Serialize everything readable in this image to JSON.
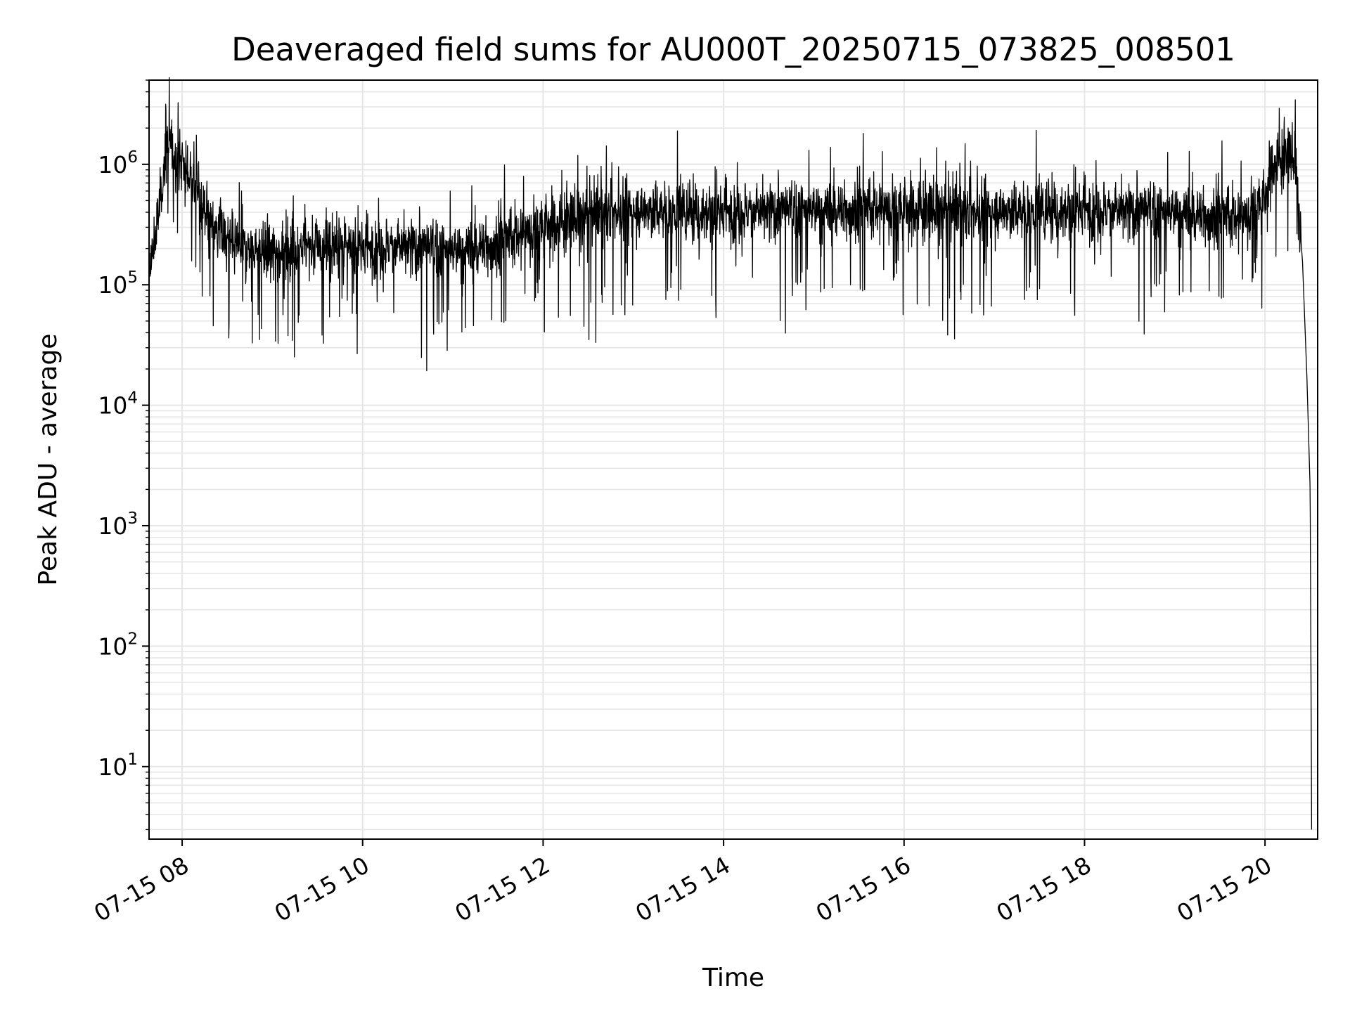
{
  "chart_data": {
    "type": "line",
    "title": "Deaveraged field sums for AU000T_20250715_073825_008501",
    "xlabel": "Time",
    "ylabel": "Peak ADU - average",
    "yscale": "log",
    "ylim": [
      2.5,
      5000000
    ],
    "xlim": [
      "07-15 07:38",
      "07-15 20:35"
    ],
    "grid": true,
    "line_color": "#000000",
    "x_ticks": [
      {
        "value": "07-15 08",
        "label": "07-15 08"
      },
      {
        "value": "07-15 10",
        "label": "07-15 10"
      },
      {
        "value": "07-15 12",
        "label": "07-15 12"
      },
      {
        "value": "07-15 14",
        "label": "07-15 14"
      },
      {
        "value": "07-15 16",
        "label": "07-15 16"
      },
      {
        "value": "07-15 18",
        "label": "07-15 18"
      },
      {
        "value": "07-15 20",
        "label": "07-15 20"
      }
    ],
    "y_ticks": [
      {
        "value": 10,
        "base": "10",
        "exp": "1"
      },
      {
        "value": 100,
        "base": "10",
        "exp": "2"
      },
      {
        "value": 1000,
        "base": "10",
        "exp": "3"
      },
      {
        "value": 10000,
        "base": "10",
        "exp": "4"
      },
      {
        "value": 100000,
        "base": "10",
        "exp": "5"
      },
      {
        "value": 1000000,
        "base": "10",
        "exp": "6"
      }
    ],
    "series": [
      {
        "x": [
          "07-15 07:38",
          "07-15 07:45",
          "07-15 07:50",
          "07-15 08:00",
          "07-15 08:10",
          "07-15 08:20",
          "07-15 08:30",
          "07-15 08:45",
          "07-15 09:00",
          "07-15 09:30",
          "07-15 10:00",
          "07-15 10:30",
          "07-15 11:00",
          "07-15 11:30",
          "07-15 12:00",
          "07-15 12:30",
          "07-15 13:00",
          "07-15 14:00",
          "07-15 15:00",
          "07-15 16:00",
          "07-15 17:00",
          "07-15 18:00",
          "07-15 19:00",
          "07-15 19:45",
          "07-15 20:00",
          "07-15 20:05",
          "07-15 20:15",
          "07-15 20:20",
          "07-15 20:25",
          "07-15 20:28",
          "07-15 20:30",
          "07-15 20:31"
        ],
        "y": [
          110000,
          450000,
          1500000,
          1000000,
          600000,
          320000,
          230000,
          200000,
          190000,
          210000,
          200000,
          210000,
          190000,
          220000,
          300000,
          380000,
          420000,
          400000,
          420000,
          420000,
          410000,
          420000,
          400000,
          350000,
          500000,
          1000000,
          1200000,
          1100000,
          150000,
          15000,
          2000,
          3
        ]
      }
    ]
  }
}
